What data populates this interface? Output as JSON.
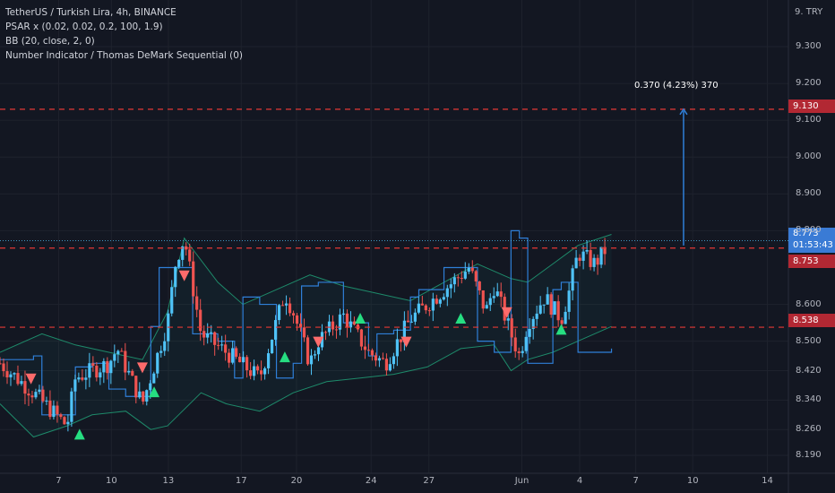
{
  "legend": {
    "line1": "TetherUS / Turkish Lira, 4h, BINANCE",
    "line2": "PSAR x (0.02, 0.02, 0.2, 100, 1.9)",
    "line3": "BB (20, close, 2, 0)",
    "line4": "Number Indicator / Thomas DeMark Sequential (0)"
  },
  "currency_label": "9. TRY",
  "measure_label": "0.370 (4.23%) 370",
  "price_tags": {
    "upper": "9.130",
    "current_price": "8.773",
    "countdown": "01:53:43",
    "middle": "8.753",
    "lower": "8.538"
  },
  "colors": {
    "background": "#131722",
    "up": "#26a69a",
    "up_body": "#4fc3f7",
    "down": "#ef5350",
    "bb_band": "#1e8a6a",
    "psar": "#2f7fd8",
    "dashed_level": "#e53935",
    "td_setup": "#26a69a"
  },
  "chart_data": {
    "type": "candlestick",
    "title": "TetherUS / Turkish Lira, 4h, BINANCE",
    "ylim": [
      8.17,
      9.42
    ],
    "yticks": [
      9.3,
      9.2,
      9.1,
      9.0,
      8.9,
      8.8,
      8.6,
      8.5,
      8.42,
      8.34,
      8.26,
      8.19
    ],
    "ytick_labels": [
      "9.300",
      "9.200",
      "9.100",
      "9.000",
      "8.900",
      "8.800",
      "8.600",
      "8.500",
      "8.420",
      "8.340",
      "8.260",
      "8.190"
    ],
    "xlim": [
      0,
      100
    ],
    "xticks": [
      {
        "label": "7",
        "x": 7
      },
      {
        "label": "10",
        "x": 13.3
      },
      {
        "label": "13",
        "x": 20.1
      },
      {
        "label": "17",
        "x": 28.8
      },
      {
        "label": "20",
        "x": 35.4
      },
      {
        "label": "24",
        "x": 44.3
      },
      {
        "label": "27",
        "x": 51.2
      },
      {
        "label": "Jun",
        "x": 62.3
      },
      {
        "label": "4",
        "x": 69.2
      },
      {
        "label": "7",
        "x": 75.9
      },
      {
        "label": "10",
        "x": 82.7
      },
      {
        "label": "14",
        "x": 91.6
      }
    ],
    "horizontal_levels": [
      9.13,
      8.753,
      8.538
    ],
    "current_price": 8.773,
    "measure": {
      "from": 8.76,
      "to": 9.13,
      "x": 81.6,
      "text": "0.370 (4.23%) 370"
    },
    "series": [
      {
        "name": "price_close_path",
        "x": [
          0,
          4,
          8,
          9,
          13,
          14,
          17,
          20,
          21,
          22,
          24,
          27,
          31,
          34,
          35,
          37,
          38,
          41,
          44,
          46,
          49,
          51,
          54,
          56,
          58,
          59,
          61,
          62,
          63,
          65,
          67,
          68,
          69,
          71,
          73
        ],
        "y": [
          8.44,
          8.36,
          8.27,
          8.4,
          8.44,
          8.48,
          8.33,
          8.55,
          8.72,
          8.78,
          8.52,
          8.47,
          8.4,
          8.63,
          8.58,
          8.44,
          8.5,
          8.57,
          8.47,
          8.44,
          8.56,
          8.6,
          8.66,
          8.7,
          8.58,
          8.65,
          8.52,
          8.46,
          8.55,
          8.62,
          8.56,
          8.64,
          8.74,
          8.71,
          8.77
        ]
      },
      {
        "name": "bb_upper",
        "x": [
          0,
          5,
          9,
          13,
          17,
          20,
          22,
          26,
          29,
          33,
          37,
          41,
          45,
          49,
          53,
          57,
          61,
          63,
          66,
          69,
          73
        ],
        "y": [
          8.47,
          8.52,
          8.49,
          8.47,
          8.45,
          8.58,
          8.78,
          8.66,
          8.6,
          8.64,
          8.68,
          8.65,
          8.63,
          8.61,
          8.66,
          8.71,
          8.67,
          8.66,
          8.71,
          8.76,
          8.79
        ]
      },
      {
        "name": "bb_lower",
        "x": [
          0,
          4,
          8,
          11,
          15,
          18,
          20,
          24,
          27,
          31,
          35,
          39,
          43,
          47,
          51,
          55,
          59,
          61,
          63,
          66,
          69,
          73
        ],
        "y": [
          8.33,
          8.24,
          8.27,
          8.3,
          8.31,
          8.26,
          8.27,
          8.36,
          8.33,
          8.31,
          8.36,
          8.39,
          8.4,
          8.41,
          8.43,
          8.48,
          8.49,
          8.42,
          8.45,
          8.47,
          8.5,
          8.54
        ]
      },
      {
        "name": "psar",
        "x": [
          0,
          4,
          5,
          8,
          9,
          11,
          13,
          15,
          18,
          19,
          21,
          23,
          26,
          28,
          29,
          31,
          33,
          35,
          36,
          38,
          41,
          44,
          45,
          47,
          49,
          50,
          53,
          55,
          57,
          59,
          61,
          62,
          63,
          66,
          67,
          69,
          71,
          73
        ],
        "y": [
          8.45,
          8.46,
          8.3,
          8.3,
          8.43,
          8.44,
          8.37,
          8.35,
          8.54,
          8.7,
          8.7,
          8.52,
          8.5,
          8.4,
          8.62,
          8.6,
          8.4,
          8.44,
          8.65,
          8.66,
          8.55,
          8.46,
          8.52,
          8.53,
          8.62,
          8.64,
          8.7,
          8.7,
          8.5,
          8.47,
          8.8,
          8.78,
          8.44,
          8.64,
          8.66,
          8.47,
          8.47,
          8.48
        ]
      }
    ],
    "signals": [
      {
        "type": "buy",
        "x": 9.5,
        "y": 8.245
      },
      {
        "type": "sell",
        "x": 3.7,
        "y": 8.4
      },
      {
        "type": "sell",
        "x": 17.0,
        "y": 8.43
      },
      {
        "type": "buy",
        "x": 18.4,
        "y": 8.36
      },
      {
        "type": "sell",
        "x": 22.0,
        "y": 8.68
      },
      {
        "type": "buy",
        "x": 34.0,
        "y": 8.455
      },
      {
        "type": "sell",
        "x": 38.0,
        "y": 8.5
      },
      {
        "type": "buy",
        "x": 43.0,
        "y": 8.56
      },
      {
        "type": "sell",
        "x": 48.5,
        "y": 8.5
      },
      {
        "type": "buy",
        "x": 55.0,
        "y": 8.56
      },
      {
        "type": "sell",
        "x": 60.5,
        "y": 8.58
      },
      {
        "type": "buy",
        "x": 67.0,
        "y": 8.53
      }
    ]
  }
}
